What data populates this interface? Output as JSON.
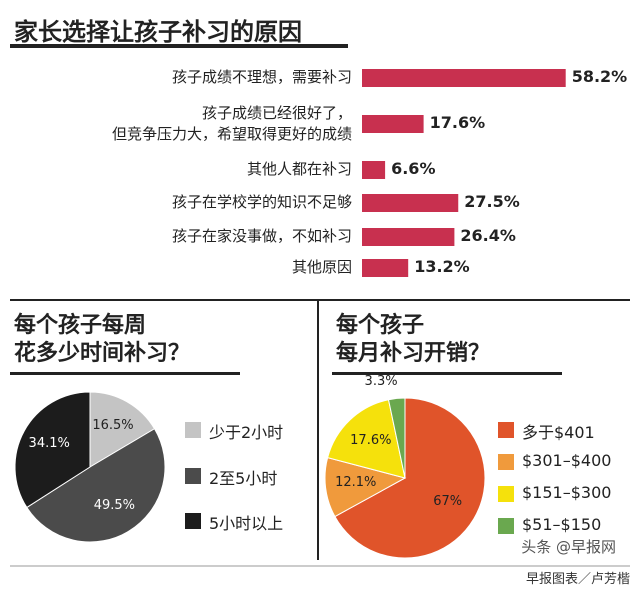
{
  "chart_data": [
    {
      "type": "bar",
      "orientation": "horizontal",
      "title": "家长选择让孩子补习的原因",
      "color": "#c8304f",
      "categories": [
        "孩子成绩不理想，需要补习",
        "孩子成绩已经很好了，\n但竞争压力大，希望取得更好的成绩",
        "其他人都在补习",
        "孩子在学校学的知识不足够",
        "孩子在家没事做，不如补习",
        "其他原因"
      ],
      "values": [
        58.2,
        17.6,
        6.6,
        27.5,
        26.4,
        13.2
      ],
      "value_labels": [
        "58.2%",
        "17.6%",
        "6.6%",
        "27.5%",
        "26.4%",
        "13.2%"
      ]
    },
    {
      "type": "pie",
      "title": "每个孩子每周\n花多少时间补习？",
      "series": [
        {
          "name": "少于2小时",
          "color": "#c4c4c4",
          "values": [
            16.5
          ]
        },
        {
          "name": "2至5小时",
          "color": "#4b4b4b",
          "values": [
            49.5
          ]
        },
        {
          "name": "5小时以上",
          "color": "#1c1c1c",
          "values": [
            34.1
          ]
        }
      ],
      "value_labels": [
        "16.5%",
        "49.5%",
        "34.1%"
      ]
    },
    {
      "type": "pie",
      "title": "每个孩子\n每月补习开销？",
      "series": [
        {
          "name": "多于$401",
          "color": "#e0542a",
          "values": [
            67
          ]
        },
        {
          "name": "$301–$400",
          "color": "#f09a3c",
          "values": [
            12.1
          ]
        },
        {
          "name": "$151–$300",
          "color": "#f5e10c",
          "values": [
            17.6
          ]
        },
        {
          "name": "$51–$150",
          "color": "#6aa84f",
          "values": [
            3.3
          ]
        }
      ],
      "value_labels": [
        "67%",
        "12.1%",
        "17.6%",
        "3.3%"
      ]
    }
  ],
  "watermark": "头条 @早报网",
  "credit": "早报图表／卢芳楷"
}
